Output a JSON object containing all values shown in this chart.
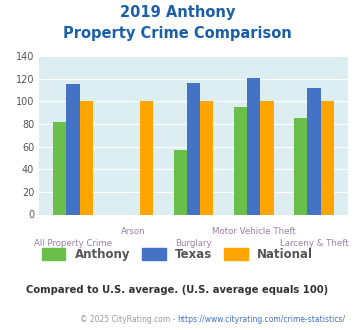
{
  "title_line1": "2019 Anthony",
  "title_line2": "Property Crime Comparison",
  "categories": [
    "All Property\nCrime",
    "Arson",
    "Burglary",
    "Motor Vehicle\nTheft",
    "Larceny & Theft"
  ],
  "cat_labels_top": [
    "",
    "Arson",
    "",
    "Motor Vehicle Theft",
    ""
  ],
  "cat_labels_bot": [
    "All Property Crime",
    "",
    "Burglary",
    "",
    "Larceny & Theft"
  ],
  "anthony": [
    82,
    0,
    57,
    95,
    85
  ],
  "texas": [
    115,
    0,
    116,
    121,
    112
  ],
  "national": [
    100,
    100,
    100,
    100,
    100
  ],
  "anthony_color": "#6abf4b",
  "texas_color": "#4472c4",
  "national_color": "#ffa500",
  "bg_color": "#ddeef3",
  "title_color": "#1a5fa8",
  "xlabel_top_color": "#9b7fa8",
  "xlabel_bot_color": "#9b7fa8",
  "legend_label_color": "#555555",
  "note_color": "#333333",
  "footer_color": "#999999",
  "footer_link_color": "#4472c4",
  "ylim": [
    0,
    140
  ],
  "yticks": [
    0,
    20,
    40,
    60,
    80,
    100,
    120,
    140
  ],
  "note": "Compared to U.S. average. (U.S. average equals 100)",
  "footer_prefix": "© 2025 CityRating.com - ",
  "footer_link": "https://www.cityrating.com/crime-statistics/"
}
